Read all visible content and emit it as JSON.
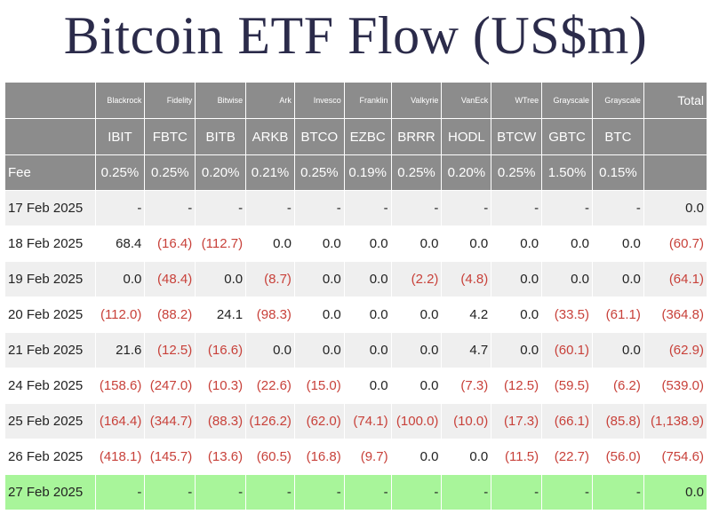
{
  "title": "Bitcoin ETF Flow (US$m)",
  "table": {
    "issuers": [
      "Blackrock",
      "Fidelity",
      "Bitwise",
      "Ark",
      "Invesco",
      "Franklin",
      "Valkyrie",
      "VanEck",
      "WTree",
      "Grayscale",
      "Grayscale"
    ],
    "total_label": "Total",
    "tickers": [
      "IBIT",
      "FBTC",
      "BITB",
      "ARKB",
      "BTCO",
      "EZBC",
      "BRRR",
      "HODL",
      "BTCW",
      "GBTC",
      "BTC"
    ],
    "fee_label": "Fee",
    "fees": [
      "0.25%",
      "0.25%",
      "0.20%",
      "0.21%",
      "0.25%",
      "0.19%",
      "0.25%",
      "0.20%",
      "0.25%",
      "1.50%",
      "0.15%"
    ],
    "rows": [
      {
        "date": "17 Feb 2025",
        "values": [
          "-",
          "-",
          "-",
          "-",
          "-",
          "-",
          "-",
          "-",
          "-",
          "-",
          "-"
        ],
        "total": "0.0"
      },
      {
        "date": "18 Feb 2025",
        "values": [
          "68.4",
          "(16.4)",
          "(112.7)",
          "0.0",
          "0.0",
          "0.0",
          "0.0",
          "0.0",
          "0.0",
          "0.0",
          "0.0"
        ],
        "total": "(60.7)"
      },
      {
        "date": "19 Feb 2025",
        "values": [
          "0.0",
          "(48.4)",
          "0.0",
          "(8.7)",
          "0.0",
          "0.0",
          "(2.2)",
          "(4.8)",
          "0.0",
          "0.0",
          "0.0"
        ],
        "total": "(64.1)"
      },
      {
        "date": "20 Feb 2025",
        "values": [
          "(112.0)",
          "(88.2)",
          "24.1",
          "(98.3)",
          "0.0",
          "0.0",
          "0.0",
          "4.2",
          "0.0",
          "(33.5)",
          "(61.1)"
        ],
        "total": "(364.8)"
      },
      {
        "date": "21 Feb 2025",
        "values": [
          "21.6",
          "(12.5)",
          "(16.6)",
          "0.0",
          "0.0",
          "0.0",
          "0.0",
          "4.7",
          "0.0",
          "(60.1)",
          "0.0"
        ],
        "total": "(62.9)"
      },
      {
        "date": "24 Feb 2025",
        "values": [
          "(158.6)",
          "(247.0)",
          "(10.3)",
          "(22.6)",
          "(15.0)",
          "0.0",
          "0.0",
          "(7.3)",
          "(12.5)",
          "(59.5)",
          "(6.2)"
        ],
        "total": "(539.0)"
      },
      {
        "date": "25 Feb 2025",
        "values": [
          "(164.4)",
          "(344.7)",
          "(88.3)",
          "(126.2)",
          "(62.0)",
          "(74.1)",
          "(100.0)",
          "(10.0)",
          "(17.3)",
          "(66.1)",
          "(85.8)"
        ],
        "total": "(1,138.9)"
      },
      {
        "date": "26 Feb 2025",
        "values": [
          "(418.1)",
          "(145.7)",
          "(13.6)",
          "(60.5)",
          "(16.8)",
          "(9.7)",
          "0.0",
          "0.0",
          "(11.5)",
          "(22.7)",
          "(56.0)"
        ],
        "total": "(754.6)"
      },
      {
        "date": "27 Feb 2025",
        "values": [
          "-",
          "-",
          "-",
          "-",
          "-",
          "-",
          "-",
          "-",
          "-",
          "-",
          "-"
        ],
        "total": "0.0"
      }
    ],
    "highlight_row": 8,
    "colors": {
      "header_bg": "#8c8c8c",
      "negative": "#c8413a",
      "highlight": "#a8f59a",
      "stripe": "#efefef"
    }
  }
}
